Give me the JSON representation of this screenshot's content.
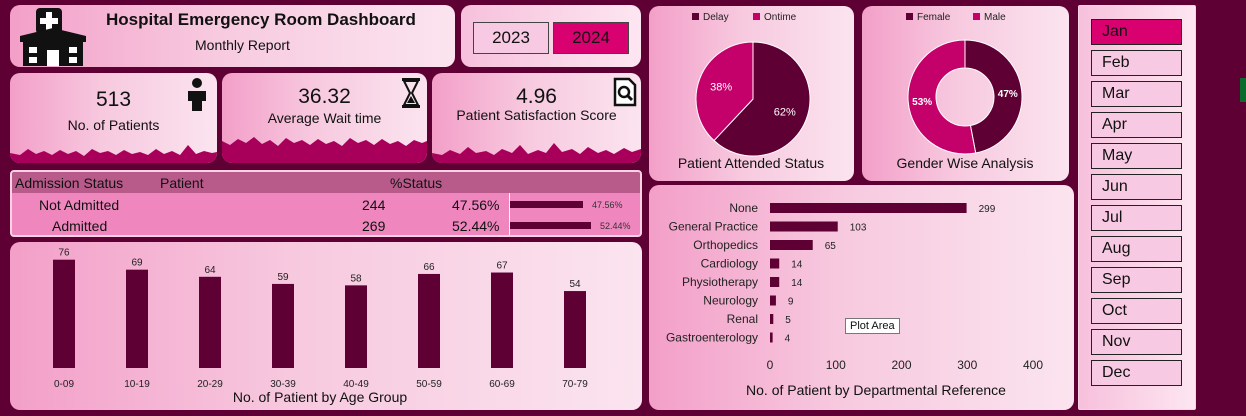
{
  "header": {
    "title": "Hospital Emergency Room Dashboard",
    "subtitle": "Monthly Report",
    "logo_icon": "hospital-icon"
  },
  "years": [
    {
      "label": "2023",
      "selected": false
    },
    {
      "label": "2024",
      "selected": true
    }
  ],
  "kpis": [
    {
      "value": "513",
      "label": "No. of Patients",
      "icon": "person-icon"
    },
    {
      "value": "36.32",
      "label": "Average Wait time",
      "icon": "hourglass-icon"
    },
    {
      "value": "4.96",
      "label": "Patient Satisfaction Score",
      "icon": "document-search-icon"
    }
  ],
  "admission_table": {
    "headers": [
      "Admission Status",
      "Patient",
      "%Status"
    ],
    "rows": [
      {
        "status": "Not Admitted",
        "patients": "244",
        "pct": "47.56%",
        "bar_label": "47.56%",
        "fraction": 0.4756
      },
      {
        "status": "Admitted",
        "patients": "269",
        "pct": "52.44%",
        "bar_label": "52.44%",
        "fraction": 0.5244
      }
    ]
  },
  "months": [
    {
      "label": "Jan",
      "selected": true
    },
    {
      "label": "Feb",
      "selected": false
    },
    {
      "label": "Mar",
      "selected": false
    },
    {
      "label": "Apr",
      "selected": false
    },
    {
      "label": "May",
      "selected": false
    },
    {
      "label": "Jun",
      "selected": false
    },
    {
      "label": "Jul",
      "selected": false
    },
    {
      "label": "Aug",
      "selected": false
    },
    {
      "label": "Sep",
      "selected": false
    },
    {
      "label": "Oct",
      "selected": false
    },
    {
      "label": "Nov",
      "selected": false
    },
    {
      "label": "Dec",
      "selected": false
    }
  ],
  "tooltip": "Plot Area",
  "colors": {
    "dark": "#5e0033",
    "accent": "#c4006a",
    "selected": "#d9006f"
  },
  "chart_data": [
    {
      "type": "pie",
      "title": "Patient Attended Status",
      "legend": [
        "Delay",
        "Ontime"
      ],
      "slices": [
        {
          "name": "Delay",
          "value": 62,
          "label": "62%"
        },
        {
          "name": "Ontime",
          "value": 38,
          "label": "38%"
        }
      ],
      "legend_position": "top"
    },
    {
      "type": "pie",
      "donut": true,
      "title": "Gender Wise Analysis",
      "legend": [
        "Female",
        "Male"
      ],
      "slices": [
        {
          "name": "Female",
          "value": 47,
          "label": "47%"
        },
        {
          "name": "Male",
          "value": 53,
          "label": "53%"
        }
      ],
      "legend_position": "top"
    },
    {
      "type": "bar",
      "title": "No. of Patient by Age Group",
      "categories": [
        "0-09",
        "10-19",
        "20-29",
        "30-39",
        "40-49",
        "50-59",
        "60-69",
        "70-79"
      ],
      "values": [
        76,
        69,
        64,
        59,
        58,
        66,
        67,
        54
      ]
    },
    {
      "type": "bar",
      "orientation": "horizontal",
      "title": "No. of Patient by Departmental Reference",
      "categories": [
        "None",
        "General Practice",
        "Orthopedics",
        "Cardiology",
        "Physiotherapy",
        "Neurology",
        "Renal",
        "Gastroenterology"
      ],
      "values": [
        299,
        103,
        65,
        14,
        14,
        9,
        5,
        4
      ],
      "xlim": [
        0,
        400
      ],
      "xticks": [
        "0",
        "100",
        "200",
        "300",
        "400"
      ]
    }
  ]
}
